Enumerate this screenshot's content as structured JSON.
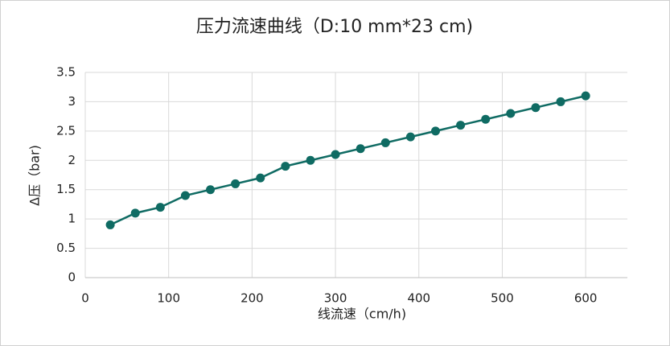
{
  "chart_data": {
    "type": "line",
    "title": "压力流速曲线（D:10 mm*23 cm)",
    "x_label": "线流速（cm/h)",
    "y_label": "Δ压（bar)",
    "x": [
      30,
      60,
      90,
      120,
      150,
      180,
      210,
      240,
      270,
      300,
      330,
      360,
      390,
      420,
      450,
      480,
      510,
      540,
      570,
      600
    ],
    "series": [
      {
        "name": "Δ压",
        "color": "#0f6b63",
        "values": [
          0.9,
          1.1,
          1.2,
          1.4,
          1.5,
          1.6,
          1.7,
          1.9,
          2.0,
          2.1,
          2.2,
          2.3,
          2.4,
          2.5,
          2.6,
          2.7,
          2.8,
          2.9,
          3.0,
          3.1
        ]
      }
    ],
    "xlim": [
      0,
      650
    ],
    "xticks": [
      0,
      100,
      200,
      300,
      400,
      500,
      600
    ],
    "ylim": [
      0,
      3.5
    ],
    "yticks": [
      0,
      0.5,
      1,
      1.5,
      2,
      2.5,
      3,
      3.5
    ],
    "grid": true
  }
}
